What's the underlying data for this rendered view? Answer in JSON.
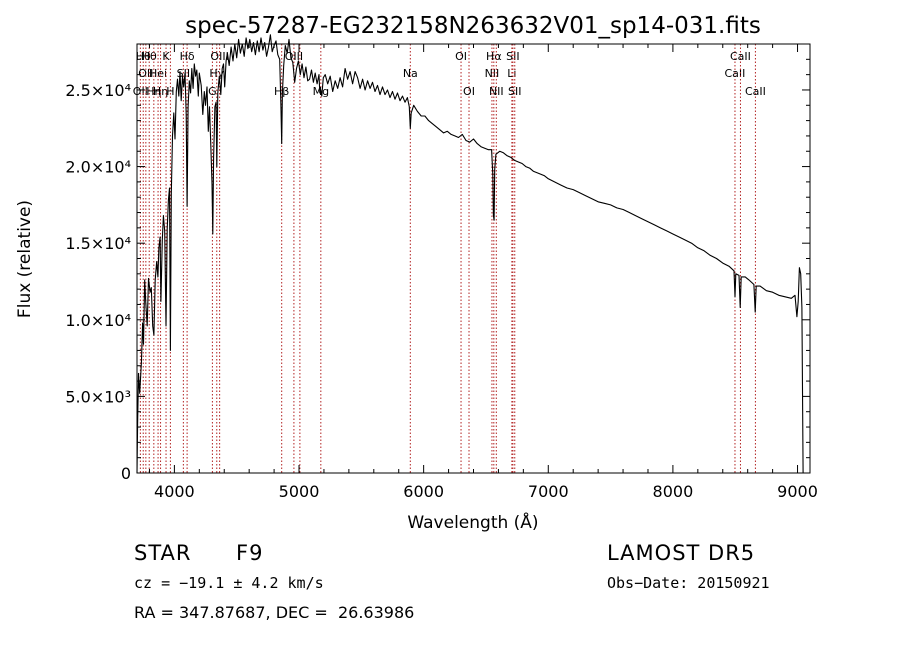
{
  "chart_data": {
    "type": "line",
    "title": "spec-57287-EG232158N263632V01_sp14-031.fits",
    "xlabel": "Wavelength (Å)",
    "ylabel": "Flux (relative)",
    "xlim": [
      3700,
      9100
    ],
    "ylim": [
      0,
      28000
    ],
    "xticks": [
      4000,
      5000,
      6000,
      7000,
      8000,
      9000
    ],
    "yticks": [
      {
        "value": 0,
        "label": "0"
      },
      {
        "value": 5000,
        "label": "5.0×10³"
      },
      {
        "value": 10000,
        "label": "1.0×10⁴"
      },
      {
        "value": 15000,
        "label": "1.5×10⁴"
      },
      {
        "value": 20000,
        "label": "2.0×10⁴"
      },
      {
        "value": 25000,
        "label": "2.5×10⁴"
      }
    ],
    "grid": false,
    "series": [
      {
        "color": "#000000",
        "points": [
          [
            3700,
            0
          ],
          [
            3705,
            3200
          ],
          [
            3712,
            6500
          ],
          [
            3722,
            5200
          ],
          [
            3735,
            7200
          ],
          [
            3745,
            9800
          ],
          [
            3752,
            8400
          ],
          [
            3762,
            12600
          ],
          [
            3770,
            11200
          ],
          [
            3782,
            9600
          ],
          [
            3792,
            12700
          ],
          [
            3805,
            11800
          ],
          [
            3815,
            12100
          ],
          [
            3826,
            9600
          ],
          [
            3836,
            9000
          ],
          [
            3846,
            12600
          ],
          [
            3858,
            13800
          ],
          [
            3868,
            12800
          ],
          [
            3876,
            14700
          ],
          [
            3885,
            15400
          ],
          [
            3892,
            11200
          ],
          [
            3903,
            15200
          ],
          [
            3912,
            16800
          ],
          [
            3922,
            15800
          ],
          [
            3933,
            9600
          ],
          [
            3942,
            15900
          ],
          [
            3952,
            17800
          ],
          [
            3961,
            18600
          ],
          [
            3968,
            8000
          ],
          [
            3975,
            18200
          ],
          [
            3985,
            22000
          ],
          [
            3995,
            23500
          ],
          [
            4005,
            21800
          ],
          [
            4015,
            24900
          ],
          [
            4025,
            25700
          ],
          [
            4035,
            24600
          ],
          [
            4045,
            26200
          ],
          [
            4055,
            24300
          ],
          [
            4065,
            25900
          ],
          [
            4075,
            25200
          ],
          [
            4085,
            26100
          ],
          [
            4095,
            23400
          ],
          [
            4102,
            17400
          ],
          [
            4110,
            23900
          ],
          [
            4120,
            25600
          ],
          [
            4130,
            24800
          ],
          [
            4140,
            26400
          ],
          [
            4150,
            25100
          ],
          [
            4160,
            26700
          ],
          [
            4170,
            25900
          ],
          [
            4180,
            26300
          ],
          [
            4192,
            24600
          ],
          [
            4200,
            26100
          ],
          [
            4215,
            25300
          ],
          [
            4228,
            23400
          ],
          [
            4240,
            24900
          ],
          [
            4250,
            24000
          ],
          [
            4262,
            25200
          ],
          [
            4272,
            22300
          ],
          [
            4282,
            23900
          ],
          [
            4292,
            21400
          ],
          [
            4302,
            18900
          ],
          [
            4308,
            15600
          ],
          [
            4315,
            20600
          ],
          [
            4325,
            23900
          ],
          [
            4335,
            24200
          ],
          [
            4340,
            20000
          ],
          [
            4348,
            24800
          ],
          [
            4360,
            25900
          ],
          [
            4372,
            24700
          ],
          [
            4384,
            26400
          ],
          [
            4394,
            26700
          ],
          [
            4404,
            25200
          ],
          [
            4415,
            26900
          ],
          [
            4425,
            27400
          ],
          [
            4440,
            26600
          ],
          [
            4455,
            27800
          ],
          [
            4470,
            26900
          ],
          [
            4485,
            28000
          ],
          [
            4500,
            27100
          ],
          [
            4515,
            28300
          ],
          [
            4530,
            27400
          ],
          [
            4545,
            28000
          ],
          [
            4560,
            27200
          ],
          [
            4575,
            28400
          ],
          [
            4590,
            27700
          ],
          [
            4605,
            28300
          ],
          [
            4620,
            27500
          ],
          [
            4635,
            28100
          ],
          [
            4650,
            27300
          ],
          [
            4665,
            28200
          ],
          [
            4680,
            27500
          ],
          [
            4695,
            28400
          ],
          [
            4710,
            27600
          ],
          [
            4725,
            28100
          ],
          [
            4740,
            27200
          ],
          [
            4755,
            27800
          ],
          [
            4770,
            28600
          ],
          [
            4785,
            27500
          ],
          [
            4800,
            27900
          ],
          [
            4815,
            28200
          ],
          [
            4830,
            27300
          ],
          [
            4845,
            27000
          ],
          [
            4855,
            24000
          ],
          [
            4861,
            21500
          ],
          [
            4867,
            24800
          ],
          [
            4877,
            26600
          ],
          [
            4890,
            27900
          ],
          [
            4905,
            27400
          ],
          [
            4920,
            28300
          ],
          [
            4935,
            27100
          ],
          [
            4950,
            26800
          ],
          [
            4965,
            25500
          ],
          [
            4980,
            26400
          ],
          [
            4995,
            26900
          ],
          [
            5010,
            26000
          ],
          [
            5025,
            26700
          ],
          [
            5040,
            25800
          ],
          [
            5055,
            26500
          ],
          [
            5070,
            25600
          ],
          [
            5085,
            25700
          ],
          [
            5100,
            26300
          ],
          [
            5115,
            25500
          ],
          [
            5130,
            26100
          ],
          [
            5145,
            25400
          ],
          [
            5160,
            26000
          ],
          [
            5167,
            24800
          ],
          [
            5175,
            25000
          ],
          [
            5183,
            24600
          ],
          [
            5195,
            25800
          ],
          [
            5210,
            26000
          ],
          [
            5230,
            25400
          ],
          [
            5250,
            25900
          ],
          [
            5270,
            24900
          ],
          [
            5290,
            25600
          ],
          [
            5310,
            25100
          ],
          [
            5330,
            25800
          ],
          [
            5350,
            25200
          ],
          [
            5370,
            26400
          ],
          [
            5390,
            25700
          ],
          [
            5410,
            26200
          ],
          [
            5430,
            25400
          ],
          [
            5450,
            26200
          ],
          [
            5470,
            25800
          ],
          [
            5490,
            25100
          ],
          [
            5510,
            25700
          ],
          [
            5530,
            25000
          ],
          [
            5550,
            25600
          ],
          [
            5570,
            25100
          ],
          [
            5590,
            25500
          ],
          [
            5610,
            24900
          ],
          [
            5630,
            25300
          ],
          [
            5650,
            24700
          ],
          [
            5670,
            25200
          ],
          [
            5690,
            24700
          ],
          [
            5710,
            25000
          ],
          [
            5730,
            24500
          ],
          [
            5750,
            24900
          ],
          [
            5770,
            24400
          ],
          [
            5790,
            24800
          ],
          [
            5810,
            24300
          ],
          [
            5830,
            24600
          ],
          [
            5850,
            24200
          ],
          [
            5870,
            24500
          ],
          [
            5885,
            23900
          ],
          [
            5893,
            22500
          ],
          [
            5900,
            23500
          ],
          [
            5920,
            24000
          ],
          [
            5950,
            23600
          ],
          [
            5980,
            23300
          ],
          [
            6010,
            23300
          ],
          [
            6040,
            23000
          ],
          [
            6070,
            22800
          ],
          [
            6100,
            22600
          ],
          [
            6130,
            22400
          ],
          [
            6160,
            22200
          ],
          [
            6190,
            22300
          ],
          [
            6220,
            22100
          ],
          [
            6250,
            22000
          ],
          [
            6280,
            21900
          ],
          [
            6310,
            22100
          ],
          [
            6340,
            21700
          ],
          [
            6370,
            21600
          ],
          [
            6400,
            21800
          ],
          [
            6430,
            21500
          ],
          [
            6460,
            21300
          ],
          [
            6490,
            21200
          ],
          [
            6520,
            21100
          ],
          [
            6545,
            21100
          ],
          [
            6555,
            19500
          ],
          [
            6560,
            16800
          ],
          [
            6565,
            16500
          ],
          [
            6570,
            19800
          ],
          [
            6580,
            20800
          ],
          [
            6610,
            21000
          ],
          [
            6640,
            20900
          ],
          [
            6670,
            20700
          ],
          [
            6700,
            20600
          ],
          [
            6730,
            20400
          ],
          [
            6760,
            20300
          ],
          [
            6790,
            20200
          ],
          [
            6820,
            20000
          ],
          [
            6850,
            19900
          ],
          [
            6880,
            19700
          ],
          [
            6910,
            19600
          ],
          [
            6940,
            19500
          ],
          [
            6970,
            19400
          ],
          [
            7000,
            19200
          ],
          [
            7050,
            19000
          ],
          [
            7100,
            18800
          ],
          [
            7150,
            18600
          ],
          [
            7200,
            18500
          ],
          [
            7250,
            18300
          ],
          [
            7300,
            18100
          ],
          [
            7350,
            17900
          ],
          [
            7400,
            17700
          ],
          [
            7450,
            17600
          ],
          [
            7500,
            17500
          ],
          [
            7550,
            17300
          ],
          [
            7600,
            17200
          ],
          [
            7650,
            17000
          ],
          [
            7700,
            16800
          ],
          [
            7750,
            16600
          ],
          [
            7800,
            16400
          ],
          [
            7850,
            16200
          ],
          [
            7900,
            16000
          ],
          [
            7950,
            15800
          ],
          [
            8000,
            15600
          ],
          [
            8050,
            15400
          ],
          [
            8100,
            15200
          ],
          [
            8150,
            15000
          ],
          [
            8200,
            14700
          ],
          [
            8250,
            14500
          ],
          [
            8300,
            14200
          ],
          [
            8350,
            14000
          ],
          [
            8400,
            13700
          ],
          [
            8450,
            13500
          ],
          [
            8490,
            13200
          ],
          [
            8498,
            11500
          ],
          [
            8505,
            13000
          ],
          [
            8530,
            12900
          ],
          [
            8540,
            10800
          ],
          [
            8548,
            12800
          ],
          [
            8580,
            12800
          ],
          [
            8610,
            12600
          ],
          [
            8650,
            12300
          ],
          [
            8660,
            10500
          ],
          [
            8668,
            12200
          ],
          [
            8700,
            12200
          ],
          [
            8750,
            11900
          ],
          [
            8800,
            11800
          ],
          [
            8850,
            11600
          ],
          [
            8900,
            11500
          ],
          [
            8950,
            11400
          ],
          [
            8980,
            11600
          ],
          [
            8995,
            10200
          ],
          [
            9005,
            11200
          ],
          [
            9015,
            13400
          ],
          [
            9025,
            13000
          ],
          [
            9035,
            10800
          ],
          [
            9045,
            0
          ]
        ]
      }
    ],
    "line_annotations": [
      {
        "wavelength": 3727,
        "label": "OII",
        "row": 2
      },
      {
        "wavelength": 3750,
        "label": "Hθ",
        "row": 0
      },
      {
        "wavelength": 3771,
        "label": "OII",
        "row": 1
      },
      {
        "wavelength": 3798,
        "label": "Hθ",
        "row": 0
      },
      {
        "wavelength": 3835,
        "label": "Hη",
        "row": 2
      },
      {
        "wavelength": 3869,
        "label": "Hei",
        "row": 1
      },
      {
        "wavelength": 3889,
        "label": "Hη",
        "row": 2
      },
      {
        "wavelength": 3933,
        "label": "K",
        "row": 0
      },
      {
        "wavelength": 3968,
        "label": "H",
        "row": 2
      },
      {
        "wavelength": 4072,
        "label": "SII",
        "row": 1
      },
      {
        "wavelength": 4102,
        "label": "Hδ",
        "row": 0
      },
      {
        "wavelength": 4305,
        "label": "G",
        "row": 2
      },
      {
        "wavelength": 4340,
        "label": "Hγ",
        "row": 1
      },
      {
        "wavelength": 4363,
        "label": "OIII",
        "row": 0
      },
      {
        "wavelength": 4861,
        "label": "Hβ",
        "row": 2
      },
      {
        "wavelength": 4959,
        "label": "OIII",
        "row": 0
      },
      {
        "wavelength": 5007,
        "label": "",
        "row": 0
      },
      {
        "wavelength": 5175,
        "label": "Mg",
        "row": 2
      },
      {
        "wavelength": 5893,
        "label": "Na",
        "row": 1
      },
      {
        "wavelength": 6300,
        "label": "OI",
        "row": 0
      },
      {
        "wavelength": 6364,
        "label": "OI",
        "row": 2
      },
      {
        "wavelength": 6548,
        "label": "NII",
        "row": 1
      },
      {
        "wavelength": 6563,
        "label": "Hα",
        "row": 0
      },
      {
        "wavelength": 6583,
        "label": "NII",
        "row": 2
      },
      {
        "wavelength": 6708,
        "label": "Li",
        "row": 1
      },
      {
        "wavelength": 6716,
        "label": "SII",
        "row": 0
      },
      {
        "wavelength": 6731,
        "label": "SII",
        "row": 2
      },
      {
        "wavelength": 8498,
        "label": "CaII",
        "row": 1
      },
      {
        "wavelength": 8542,
        "label": "CaII",
        "row": 0
      },
      {
        "wavelength": 8662,
        "label": "CaII",
        "row": 2
      }
    ]
  },
  "info": {
    "object_class": "STAR",
    "subclass": "F9",
    "survey": "LAMOST DR5",
    "redshift_line": "cz = −19.1 ± 4.2 km/s",
    "obs_date": "Obs−Date: 20150921",
    "coords": "RA = 347.87687, DEC =  26.63986"
  }
}
